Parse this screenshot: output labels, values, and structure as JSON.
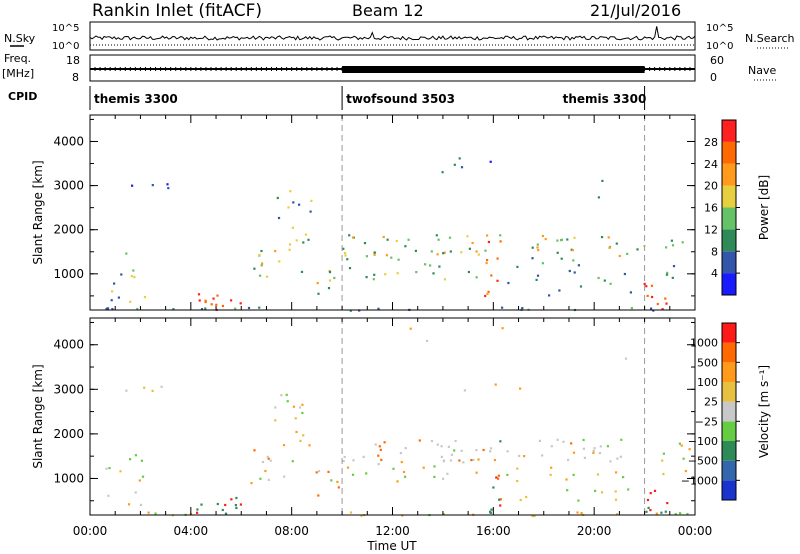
{
  "header": {
    "title": "Rankin Inlet (fitACF)",
    "beam": "Beam 12",
    "date": "21/Jul/2016"
  },
  "top_panels": {
    "nsky_label": "N.Sky",
    "nsky_ticks": [
      "10^5",
      "10^0"
    ],
    "nsearch_label": "N.Search",
    "nsearch_ticks": [
      "10^5",
      "10^0"
    ],
    "freq_label": "Freq.",
    "freq_unit": "[MHz]",
    "freq_ticks": [
      "18",
      "8"
    ],
    "nave_label": "Nave",
    "nave_ticks": [
      "60",
      "0"
    ],
    "cpid_label": "CPID",
    "cpid_segments": [
      {
        "name": "themis 3300",
        "start": 0,
        "end": 10
      },
      {
        "name": "twofsound 3503",
        "start": 10,
        "end": 22
      },
      {
        "name": "themis 3300",
        "start": 22,
        "end": 24
      }
    ]
  },
  "chart_data": [
    {
      "type": "heatmap",
      "title": "",
      "ylabel": "Slant Range [km]",
      "xlabel": "",
      "xlim": [
        0,
        24
      ],
      "ylim": [
        180,
        4600
      ],
      "yticks": [
        "1000",
        "2000",
        "3000",
        "4000"
      ],
      "colorbar_label": "Power [dB]",
      "colorbar_ticks": [
        "4",
        "8",
        "12",
        "16",
        "20",
        "24",
        "28"
      ],
      "colorbar_colors": [
        "#1a1aff",
        "#3355aa",
        "#2e8b57",
        "#66c266",
        "#e6d040",
        "#ff9a1a",
        "#ff6a00",
        "#ff2020"
      ]
    },
    {
      "type": "heatmap",
      "title": "",
      "ylabel": "Slant Range [km]",
      "xlabel": "Time UT",
      "xlim": [
        0,
        24
      ],
      "ylim": [
        180,
        4600
      ],
      "yticks": [
        "1000",
        "2000",
        "3000",
        "4000"
      ],
      "xticks": [
        "00:00",
        "04:00",
        "08:00",
        "12:00",
        "16:00",
        "20:00",
        "00:00"
      ],
      "colorbar_label": "Velocity [m s⁻¹]",
      "colorbar_ticks": [
        "1000",
        "500",
        "100",
        "25",
        "−25",
        "−100",
        "−500",
        "−1000"
      ],
      "colorbar_colors": [
        "#1a33cc",
        "#3366aa",
        "#2e8b57",
        "#66cc44",
        "#c8c8c8",
        "#e6c040",
        "#ff9a1a",
        "#ff6a00",
        "#ff1a1a"
      ]
    }
  ]
}
